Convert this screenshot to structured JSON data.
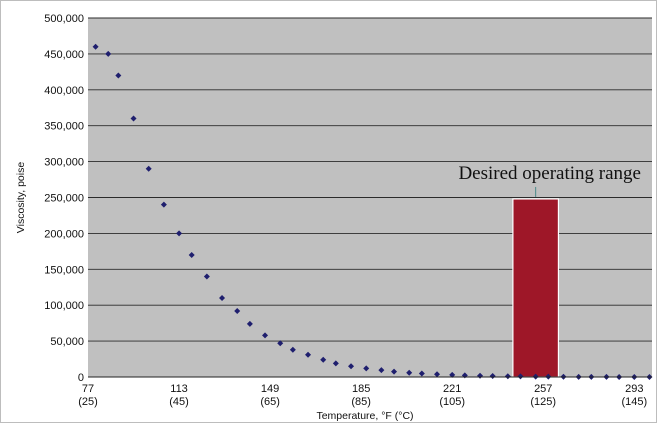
{
  "chart_data": {
    "type": "scatter",
    "title": "",
    "xlabel": "Temperature, °F (°C)",
    "ylabel": "Viscosity, poise",
    "xlim": [
      77,
      300
    ],
    "ylim": [
      0,
      500000
    ],
    "grid": true,
    "plot_background": "#c0c0c0",
    "point_color": "#1f1f6e",
    "x_ticks": [
      {
        "value": 77,
        "label_f": "77",
        "label_c": "(25)"
      },
      {
        "value": 113,
        "label_f": "113",
        "label_c": "(45)"
      },
      {
        "value": 149,
        "label_f": "149",
        "label_c": "(65)"
      },
      {
        "value": 185,
        "label_f": "185",
        "label_c": "(85)"
      },
      {
        "value": 221,
        "label_f": "221",
        "label_c": "(105)"
      },
      {
        "value": 257,
        "label_f": "257",
        "label_c": "(125)"
      },
      {
        "value": 293,
        "label_f": "293",
        "label_c": "(145)"
      }
    ],
    "y_ticks": [
      {
        "value": 0,
        "label": "0"
      },
      {
        "value": 50000,
        "label": "50,000"
      },
      {
        "value": 100000,
        "label": "100,000"
      },
      {
        "value": 150000,
        "label": "150,000"
      },
      {
        "value": 200000,
        "label": "200,000"
      },
      {
        "value": 250000,
        "label": "250,000"
      },
      {
        "value": 300000,
        "label": "300,000"
      },
      {
        "value": 350000,
        "label": "350,000"
      },
      {
        "value": 400000,
        "label": "400,000"
      },
      {
        "value": 450000,
        "label": "450,000"
      },
      {
        "value": 500000,
        "label": "500,000"
      }
    ],
    "series": [
      {
        "points": [
          [
            80,
            460000
          ],
          [
            85,
            450000
          ],
          [
            89,
            420000
          ],
          [
            95,
            360000
          ],
          [
            101,
            290000
          ],
          [
            107,
            240000
          ],
          [
            113,
            200000
          ],
          [
            118,
            170000
          ],
          [
            124,
            140000
          ],
          [
            130,
            110000
          ],
          [
            136,
            92000
          ],
          [
            141,
            74000
          ],
          [
            147,
            58000
          ],
          [
            153,
            47000
          ],
          [
            158,
            38000
          ],
          [
            164,
            31000
          ],
          [
            170,
            24000
          ],
          [
            175,
            19000
          ],
          [
            181,
            15000
          ],
          [
            187,
            12000
          ],
          [
            193,
            9500
          ],
          [
            198,
            7500
          ],
          [
            204,
            6000
          ],
          [
            209,
            4800
          ],
          [
            215,
            3800
          ],
          [
            221,
            3000
          ],
          [
            226,
            2300
          ],
          [
            232,
            1800
          ],
          [
            237,
            1400
          ],
          [
            243,
            1000
          ],
          [
            248,
            800
          ],
          [
            254,
            600
          ],
          [
            259,
            450
          ],
          [
            265,
            350
          ],
          [
            271,
            250
          ],
          [
            276,
            180
          ],
          [
            282,
            120
          ],
          [
            287,
            80
          ],
          [
            293,
            50
          ],
          [
            299,
            30
          ]
        ]
      }
    ],
    "annotations": [
      {
        "text": "Desired operating range",
        "x_range": [
          245,
          263
        ],
        "y_range": [
          0,
          248000
        ],
        "color": "#9e1728"
      }
    ]
  }
}
